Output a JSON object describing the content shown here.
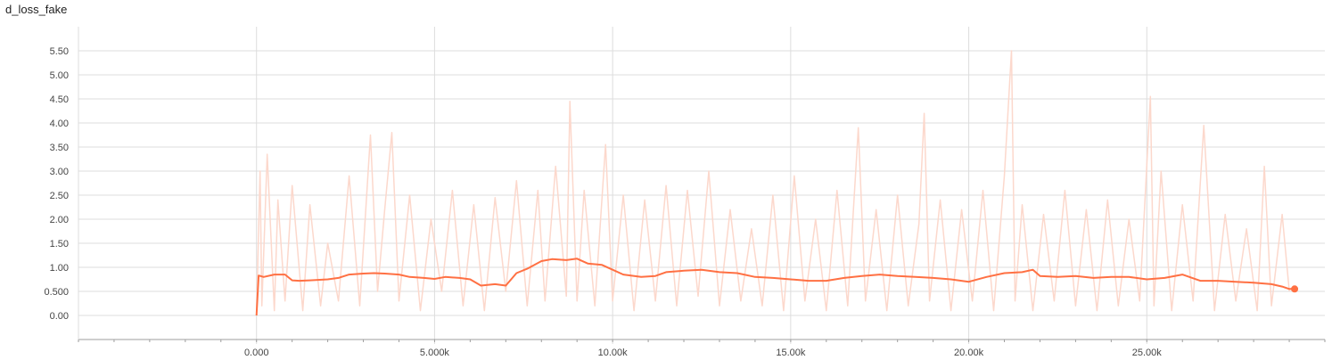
{
  "chart_data": {
    "type": "line",
    "title": "d_loss_fake",
    "xlabel": "",
    "ylabel": "",
    "xlim": [
      -5000,
      30000
    ],
    "ylim": [
      -0.5,
      6.0
    ],
    "grid": true,
    "x_ticks": [
      0,
      5000,
      10000,
      15000,
      20000,
      25000
    ],
    "x_tick_labels": [
      "0.000",
      "5.000k",
      "10.00k",
      "15.00k",
      "20.00k",
      "25.00k"
    ],
    "y_ticks": [
      0,
      0.5,
      1.0,
      1.5,
      2.0,
      2.5,
      3.0,
      3.5,
      4.0,
      4.5,
      5.0,
      5.5
    ],
    "y_tick_labels": [
      "0.00",
      "0.500",
      "1.00",
      "1.50",
      "2.00",
      "2.50",
      "3.00",
      "3.50",
      "4.00",
      "4.50",
      "5.00",
      "5.50"
    ],
    "colors": {
      "smoothed": "#ff7043",
      "raw": "#fcd8cc",
      "grid": "#dddddd",
      "axis": "#9e9e9e"
    },
    "series": [
      {
        "style": "smoothed",
        "x": [
          0,
          60,
          200,
          500,
          800,
          1000,
          1200,
          1500,
          2000,
          2300,
          2600,
          3000,
          3300,
          3600,
          4000,
          4300,
          4700,
          5000,
          5300,
          5700,
          6000,
          6300,
          6700,
          7000,
          7300,
          7600,
          8000,
          8300,
          8700,
          9000,
          9300,
          9700,
          10000,
          10300,
          10800,
          11200,
          11500,
          12000,
          12500,
          13000,
          13500,
          14000,
          14500,
          15000,
          15500,
          16000,
          16500,
          17000,
          17500,
          18000,
          18500,
          19000,
          19500,
          20000,
          20500,
          21000,
          21500,
          21800,
          22000,
          22500,
          23000,
          23500,
          24000,
          24500,
          25000,
          25500,
          26000,
          26500,
          27000,
          27500,
          28000,
          28500,
          28800,
          29000,
          29150
        ],
        "y": [
          0.0,
          0.83,
          0.8,
          0.85,
          0.85,
          0.73,
          0.72,
          0.73,
          0.75,
          0.78,
          0.85,
          0.87,
          0.88,
          0.87,
          0.85,
          0.8,
          0.78,
          0.76,
          0.8,
          0.78,
          0.75,
          0.62,
          0.65,
          0.62,
          0.88,
          0.97,
          1.13,
          1.17,
          1.15,
          1.18,
          1.08,
          1.05,
          0.95,
          0.85,
          0.8,
          0.82,
          0.9,
          0.93,
          0.95,
          0.9,
          0.88,
          0.8,
          0.78,
          0.75,
          0.72,
          0.72,
          0.78,
          0.82,
          0.85,
          0.82,
          0.8,
          0.78,
          0.75,
          0.7,
          0.8,
          0.88,
          0.9,
          0.95,
          0.82,
          0.8,
          0.82,
          0.78,
          0.8,
          0.8,
          0.75,
          0.78,
          0.85,
          0.72,
          0.72,
          0.7,
          0.68,
          0.65,
          0.6,
          0.55,
          0.55
        ]
      },
      {
        "style": "raw",
        "x": [
          0,
          100,
          150,
          300,
          500,
          600,
          800,
          1000,
          1300,
          1500,
          1800,
          2000,
          2300,
          2600,
          2900,
          3200,
          3400,
          3600,
          3800,
          4000,
          4300,
          4600,
          4900,
          5200,
          5500,
          5800,
          6100,
          6400,
          6700,
          7000,
          7300,
          7600,
          7900,
          8100,
          8400,
          8700,
          8800,
          9000,
          9200,
          9500,
          9800,
          10000,
          10300,
          10600,
          10900,
          11200,
          11500,
          11800,
          12100,
          12400,
          12700,
          13000,
          13300,
          13600,
          13900,
          14200,
          14500,
          14800,
          15100,
          15400,
          15700,
          16000,
          16300,
          16600,
          16900,
          17100,
          17400,
          17700,
          18000,
          18300,
          18600,
          18750,
          18900,
          19200,
          19500,
          19800,
          20100,
          20400,
          20700,
          21000,
          21200,
          21300,
          21500,
          21800,
          22100,
          22400,
          22700,
          23000,
          23300,
          23600,
          23900,
          24200,
          24500,
          24800,
          25100,
          25200,
          25400,
          25700,
          26000,
          26300,
          26600,
          26900,
          27200,
          27500,
          27800,
          28100,
          28300,
          28500,
          28800,
          29000
        ],
        "y": [
          0.0,
          3.0,
          0.2,
          3.35,
          0.1,
          2.4,
          0.3,
          2.7,
          0.1,
          2.3,
          0.2,
          1.5,
          0.3,
          2.9,
          0.2,
          3.75,
          0.5,
          2.2,
          3.8,
          0.3,
          2.5,
          0.1,
          2.0,
          0.5,
          2.6,
          0.2,
          2.3,
          0.1,
          2.45,
          0.5,
          2.8,
          0.2,
          2.6,
          0.3,
          3.1,
          0.4,
          4.45,
          0.3,
          2.6,
          0.2,
          3.55,
          0.3,
          2.5,
          0.1,
          2.4,
          0.3,
          2.7,
          0.2,
          2.6,
          0.4,
          3.0,
          0.2,
          2.2,
          0.3,
          1.8,
          0.2,
          2.5,
          0.1,
          2.9,
          0.3,
          2.0,
          0.1,
          2.6,
          0.2,
          3.9,
          0.3,
          2.2,
          0.1,
          2.5,
          0.2,
          1.9,
          4.2,
          0.3,
          2.4,
          0.1,
          2.2,
          0.3,
          2.6,
          0.1,
          2.9,
          5.5,
          0.3,
          2.3,
          0.1,
          2.1,
          0.3,
          2.6,
          0.2,
          2.2,
          0.1,
          2.4,
          0.2,
          2.0,
          0.3,
          4.55,
          0.2,
          3.0,
          0.1,
          2.3,
          0.3,
          3.95,
          0.1,
          2.1,
          0.3,
          1.8,
          0.1,
          3.1,
          0.2,
          2.1,
          0.5
        ]
      }
    ]
  }
}
